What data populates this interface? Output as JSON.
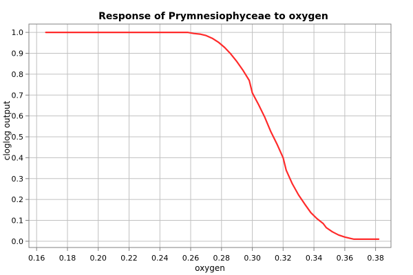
{
  "chart_data": {
    "type": "line",
    "title": "Response of Prymnesiophyceae to oxygen",
    "xlabel": "oxygen",
    "ylabel": "cloglog output",
    "xlim": [
      0.155,
      0.39
    ],
    "ylim": [
      -0.03,
      1.04
    ],
    "xticks": [
      0.16,
      0.18,
      0.2,
      0.22,
      0.24,
      0.26,
      0.28,
      0.3,
      0.32,
      0.34,
      0.36,
      0.38
    ],
    "xtick_labels": [
      "0.16",
      "0.18",
      "0.20",
      "0.22",
      "0.24",
      "0.26",
      "0.28",
      "0.30",
      "0.32",
      "0.34",
      "0.36",
      "0.38"
    ],
    "yticks": [
      0.0,
      0.1,
      0.2,
      0.3,
      0.4,
      0.5,
      0.6,
      0.7,
      0.8,
      0.9,
      1.0
    ],
    "ytick_labels": [
      "0.0",
      "0.1",
      "0.2",
      "0.3",
      "0.4",
      "0.5",
      "0.6",
      "0.7",
      "0.8",
      "0.9",
      "1.0"
    ],
    "grid": true,
    "series": [
      {
        "color": "#ff2a2a",
        "x": [
          0.166,
          0.18,
          0.2,
          0.22,
          0.24,
          0.258,
          0.262,
          0.266,
          0.27,
          0.274,
          0.278,
          0.282,
          0.286,
          0.29,
          0.294,
          0.298,
          0.3,
          0.304,
          0.308,
          0.312,
          0.316,
          0.32,
          0.322,
          0.326,
          0.33,
          0.334,
          0.338,
          0.342,
          0.346,
          0.348,
          0.352,
          0.356,
          0.36,
          0.364,
          0.366,
          0.37,
          0.376,
          0.382
        ],
        "y": [
          1.0,
          1.0,
          1.0,
          1.0,
          1.0,
          1.0,
          0.995,
          0.992,
          0.985,
          0.972,
          0.953,
          0.928,
          0.897,
          0.86,
          0.818,
          0.77,
          0.71,
          0.655,
          0.595,
          0.525,
          0.465,
          0.4,
          0.34,
          0.275,
          0.222,
          0.178,
          0.137,
          0.108,
          0.085,
          0.065,
          0.045,
          0.03,
          0.02,
          0.013,
          0.01,
          0.01,
          0.01,
          0.01
        ]
      }
    ]
  }
}
